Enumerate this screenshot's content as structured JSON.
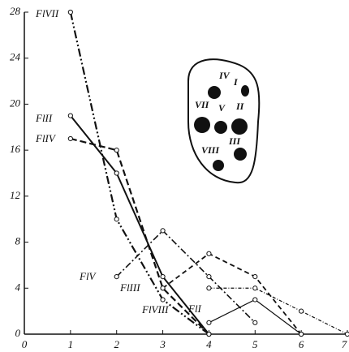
{
  "chart_data": {
    "type": "line",
    "x": [
      1,
      2,
      3,
      4,
      5,
      6,
      7
    ],
    "xlim": [
      0,
      7
    ],
    "xticks": [
      0,
      1,
      2,
      3,
      4,
      5,
      6,
      7
    ],
    "ylim": [
      0,
      28
    ],
    "yticks": [
      0,
      4,
      8,
      12,
      16,
      20,
      24,
      28
    ],
    "series": [
      {
        "name": "FlVII",
        "color": "#111111",
        "values": [
          28,
          10,
          3,
          0,
          null,
          null,
          null
        ]
      },
      {
        "name": "FlII",
        "color": "#111111",
        "values": [
          19,
          14,
          5,
          0,
          null,
          null,
          null
        ]
      },
      {
        "name": "FlIV",
        "color": "#111111",
        "values": [
          17,
          16,
          4,
          0,
          null,
          null,
          null
        ]
      },
      {
        "name": "FlV",
        "color": "#111111",
        "values": [
          null,
          5,
          9,
          5,
          1,
          null,
          null
        ]
      },
      {
        "name": "FlIII",
        "color": "#111111",
        "values": [
          null,
          null,
          4,
          7,
          5,
          0,
          null
        ]
      },
      {
        "name": "FlVIII",
        "color": "#111111",
        "values": [
          null,
          null,
          null,
          4,
          4,
          2,
          0
        ]
      },
      {
        "name": "FlI",
        "color": "#111111",
        "values": [
          null,
          null,
          null,
          1,
          3,
          0,
          null
        ]
      }
    ],
    "inset_labels": [
      "IV",
      "I",
      "VII",
      "V",
      "II",
      "VIII",
      "III"
    ]
  }
}
